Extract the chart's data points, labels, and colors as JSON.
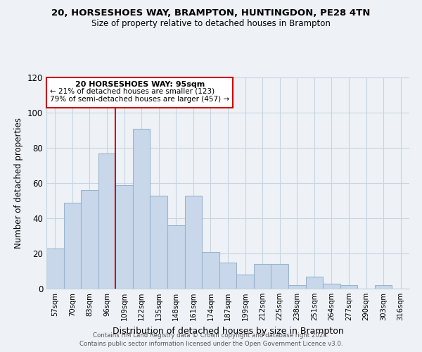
{
  "title": "20, HORSESHOES WAY, BRAMPTON, HUNTINGDON, PE28 4TN",
  "subtitle": "Size of property relative to detached houses in Brampton",
  "xlabel": "Distribution of detached houses by size in Brampton",
  "ylabel": "Number of detached properties",
  "bar_color": "#c8d8ea",
  "bar_edge_color": "#9ab4cc",
  "categories": [
    "57sqm",
    "70sqm",
    "83sqm",
    "96sqm",
    "109sqm",
    "122sqm",
    "135sqm",
    "148sqm",
    "161sqm",
    "174sqm",
    "187sqm",
    "199sqm",
    "212sqm",
    "225sqm",
    "238sqm",
    "251sqm",
    "264sqm",
    "277sqm",
    "290sqm",
    "303sqm",
    "316sqm"
  ],
  "values": [
    23,
    49,
    56,
    77,
    59,
    91,
    53,
    36,
    53,
    21,
    15,
    8,
    14,
    14,
    2,
    7,
    3,
    2,
    0,
    2,
    0
  ],
  "vline_x": 3.5,
  "vline_color": "#cc0000",
  "annotation_title": "20 HORSESHOES WAY: 95sqm",
  "annotation_line1": "← 21% of detached houses are smaller (123)",
  "annotation_line2": "79% of semi-detached houses are larger (457) →",
  "annotation_box_color": "#ffffff",
  "annotation_box_edge": "#cc0000",
  "ylim": [
    0,
    120
  ],
  "yticks": [
    0,
    20,
    40,
    60,
    80,
    100,
    120
  ],
  "footer1": "Contains HM Land Registry data © Crown copyright and database right 2024.",
  "footer2": "Contains public sector information licensed under the Open Government Licence v3.0.",
  "background_color": "#eef2f7",
  "plot_bg_color": "#eef2f7",
  "grid_color": "#c8d4e0"
}
